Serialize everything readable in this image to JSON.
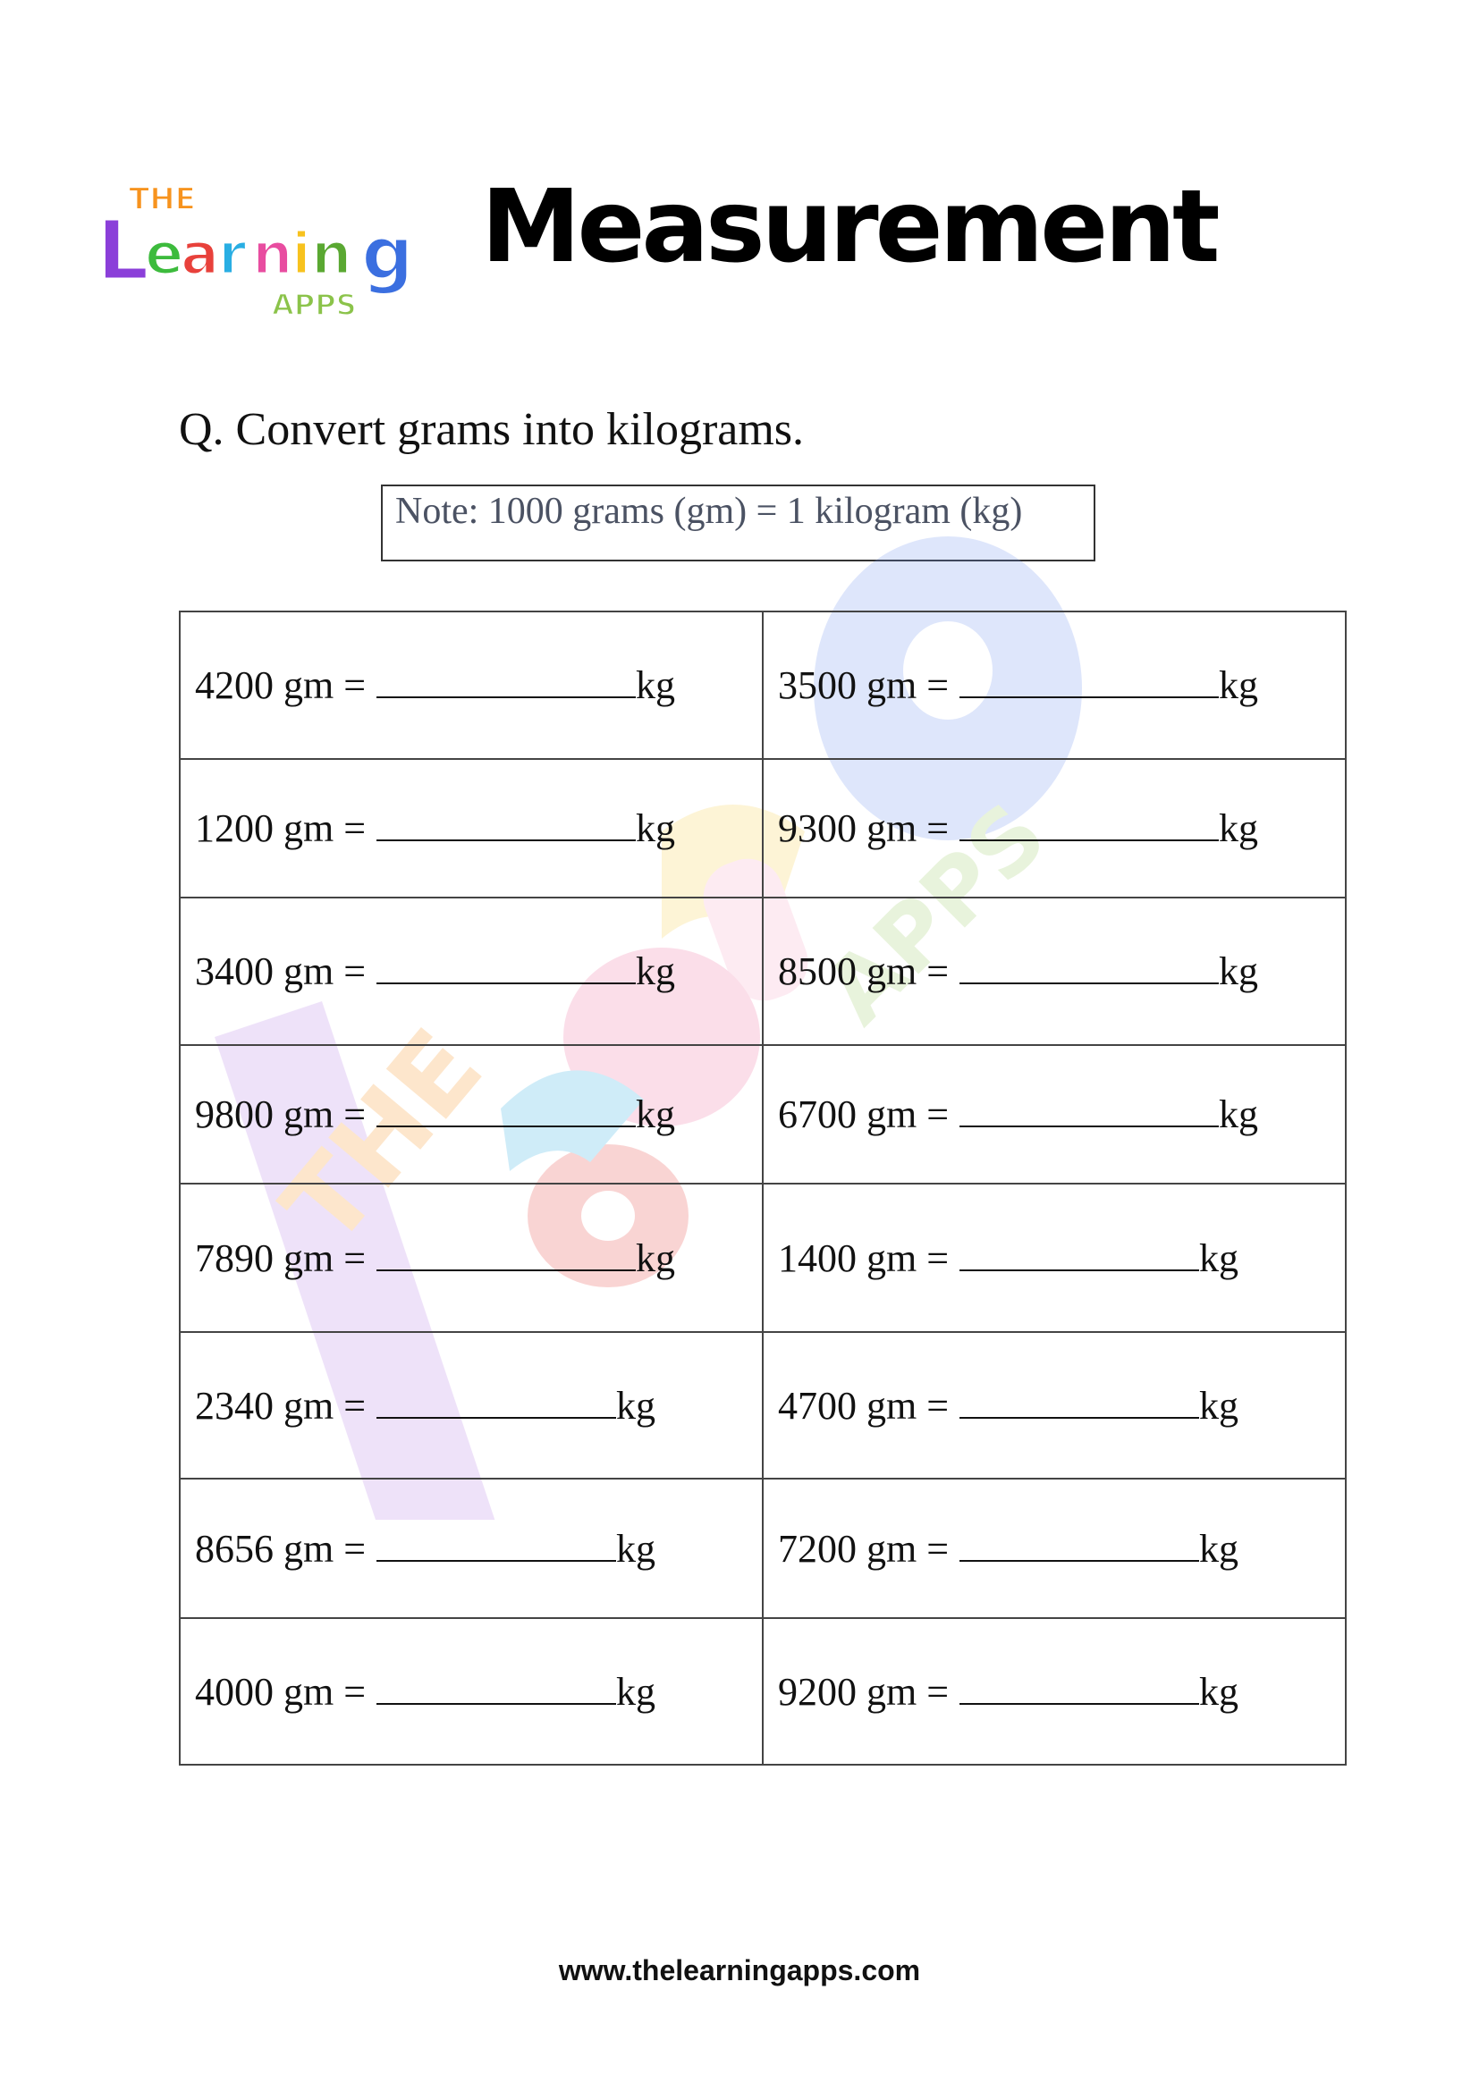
{
  "logo": {
    "text": [
      "THE",
      "Learning",
      "APPS"
    ]
  },
  "title": "Measurement",
  "question": "Q. Convert grams into kilograms.",
  "note": "Note: 1000 grams (gm) = 1 kilogram (kg)",
  "unit_suffix": "kg",
  "rows": [
    [
      "4200 gm =",
      "3500 gm ="
    ],
    [
      "1200 gm =",
      "9300 gm ="
    ],
    [
      "3400 gm =",
      "8500 gm ="
    ],
    [
      "9800 gm =",
      "6700 gm ="
    ],
    [
      "7890 gm =",
      "1400 gm ="
    ],
    [
      "2340 gm =",
      "4700 gm ="
    ],
    [
      "8656 gm =",
      "7200 gm ="
    ],
    [
      "4000 gm =",
      "9200 gm ="
    ]
  ],
  "footer": "www.thelearningapps.com",
  "watermark": "The Learning APPS"
}
